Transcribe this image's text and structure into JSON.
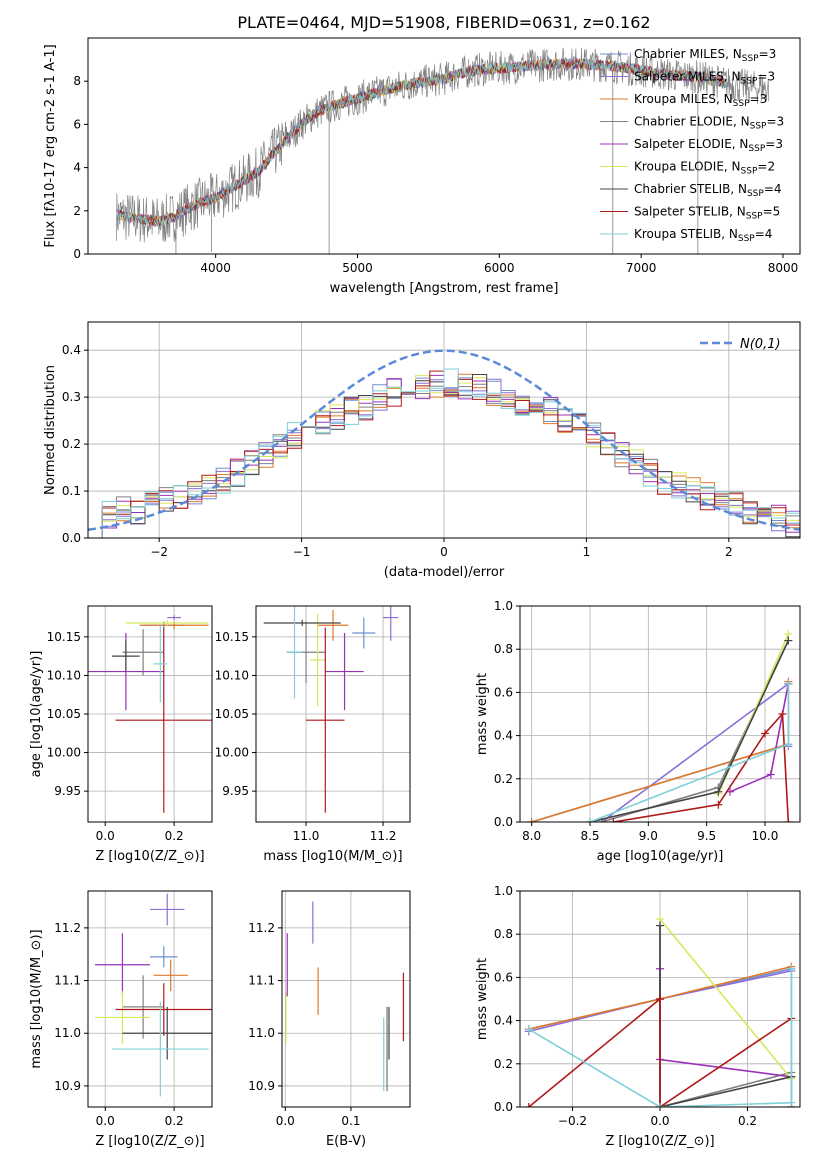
{
  "title": "PLATE=0464, MJD=51908, FIBERID=0631, z=0.162",
  "series_colors": [
    "#6f8fd8",
    "#8c6fd8",
    "#e07a2a",
    "#808080",
    "#9b30b8",
    "#d9e65a",
    "#444444",
    "#b01818",
    "#7fd0d8"
  ],
  "series_names": [
    "Chabrier MILES, N$_{SSP}$=3",
    "Salpeter MILES, N$_{SSP}$=3",
    "Kroupa MILES, N$_{SSP}$=3",
    "Chabrier ELODIE, N$_{SSP}$=3",
    "Salpeter ELODIE, N$_{SSP}$=3",
    "Kroupa ELODIE, N$_{SSP}$=2",
    "Chabrier STELIB, N$_{SSP}$=4",
    "Salpeter STELIB, N$_{SSP}$=5",
    "Kroupa STELIB, N$_{SSP}$=4"
  ],
  "chart_data": [
    {
      "id": "spectrum",
      "type": "line",
      "xlabel": "wavelength [Angstrom, rest frame]",
      "ylabel": "Flux [f$_\\lambda$10$^{-17}$ erg cm$^{-2}$ s$^{-1}$ A$^{-1}$]",
      "xlim": [
        3100,
        8120
      ],
      "ylim": [
        0,
        10
      ],
      "xticks": [
        "4000",
        "5000",
        "6000",
        "7000",
        "8000"
      ],
      "yticks": [
        "0",
        "2",
        "4",
        "6",
        "8"
      ],
      "grid": false,
      "legend": "upper-right",
      "legend_entries": [
        "Chabrier MILES, N",
        "Salpeter MILES, N",
        "Kroupa MILES, N",
        "Chabrier ELODIE, N",
        "Salpeter ELODIE, N",
        "Kroupa ELODIE, N",
        "Chabrier STELIB, N",
        "Salpeter STELIB, N",
        "Kroupa STELIB, N"
      ],
      "legend_sub": "SSP",
      "legend_suffix": [
        "=3",
        "=3",
        "=3",
        "=3",
        "=3",
        "=2",
        "=4",
        "=5",
        "=4"
      ],
      "continuum": {
        "x": [
          3300,
          3400,
          3500,
          3600,
          3700,
          3800,
          3900,
          4000,
          4100,
          4200,
          4300,
          4400,
          4500,
          4600,
          4700,
          4800,
          4900,
          5000,
          5200,
          5400,
          5600,
          5800,
          6000,
          6200,
          6400,
          6600,
          6800,
          7000,
          7200,
          7400,
          7600,
          7800
        ],
        "y": [
          1.8,
          1.7,
          1.6,
          1.5,
          1.7,
          2.1,
          2.4,
          2.6,
          3.0,
          3.4,
          3.8,
          4.6,
          5.3,
          6.0,
          6.5,
          6.8,
          7.0,
          7.2,
          7.6,
          7.9,
          8.1,
          8.5,
          8.6,
          8.7,
          8.8,
          8.8,
          8.7,
          8.5,
          8.3,
          8.2,
          7.9,
          7.7
        ]
      }
    },
    {
      "id": "residuals",
      "type": "bar",
      "xlabel": "(data-model)/error",
      "ylabel": "Normed distribution",
      "xlim": [
        -2.5,
        2.5
      ],
      "ylim": [
        0,
        0.46
      ],
      "xticks": [
        "−2",
        "−1",
        "0",
        "1",
        "2"
      ],
      "yticks": [
        "0.0",
        "0.1",
        "0.2",
        "0.3",
        "0.4"
      ],
      "grid": true,
      "legend": "upper-right",
      "legend_label": "N(0,1)",
      "bin_width": 0.1,
      "hist_base": [
        0.03,
        0.05,
        0.06,
        0.06,
        0.07,
        0.08,
        0.09,
        0.1,
        0.11,
        0.12,
        0.14,
        0.16,
        0.18,
        0.2,
        0.22,
        0.24,
        0.25,
        0.26,
        0.27,
        0.28,
        0.3,
        0.31,
        0.32,
        0.32,
        0.33,
        0.33,
        0.32,
        0.32,
        0.31,
        0.3,
        0.29,
        0.28,
        0.27,
        0.25,
        0.24,
        0.22,
        0.2,
        0.18,
        0.16,
        0.14,
        0.12,
        0.11,
        0.1,
        0.09,
        0.08,
        0.07,
        0.06,
        0.05,
        0.04,
        0.03
      ]
    },
    {
      "id": "age-vs-Z",
      "type": "scatter",
      "xlabel": "Z [log$_{10}$($Z/Z_\\odot$)]",
      "ylabel": "age  [log$_{10}$($age/yr$)]",
      "xlim": [
        -0.05,
        0.31
      ],
      "ylim": [
        9.91,
        10.19
      ],
      "xticks": [
        "0.0",
        "0.2"
      ],
      "yticks": [
        "9.95",
        "10.00",
        "10.05",
        "10.10",
        "10.15"
      ],
      "grid": true,
      "points": [
        {
          "x": 0.17,
          "y": 10.165,
          "xerr": 0.06,
          "yerr": 0.005
        },
        {
          "x": 0.2,
          "y": 10.175,
          "xerr": 0.02,
          "yerr": 0.003
        },
        {
          "x": 0.2,
          "y": 10.165,
          "xerr": 0.1,
          "yerr": 0.005
        },
        {
          "x": 0.11,
          "y": 10.13,
          "xerr": 0.06,
          "yerr": 0.03
        },
        {
          "x": 0.06,
          "y": 10.105,
          "xerr": 0.11,
          "yerr": 0.05
        },
        {
          "x": 0.18,
          "y": 10.168,
          "xerr": 0.12,
          "yerr": 0.004
        },
        {
          "x": 0.06,
          "y": 10.125,
          "xerr": 0.04,
          "yerr": 0.02
        },
        {
          "x": 0.17,
          "y": 10.042,
          "xerr": 0.14,
          "yerr": 0.12
        },
        {
          "x": 0.16,
          "y": 10.115,
          "xerr": 0.02,
          "yerr": 0.05
        }
      ]
    },
    {
      "id": "age-vs-mass",
      "type": "scatter",
      "xlabel": "mass [log$_{10}$($M/M_\\odot$)]",
      "ylabel": "",
      "xlim": [
        10.87,
        11.27
      ],
      "ylim": [
        9.91,
        10.19
      ],
      "xticks": [
        "11.0",
        "11.2"
      ],
      "yticks": [
        "9.95",
        "10.00",
        "10.05",
        "10.10",
        "10.15"
      ],
      "grid": true,
      "points": [
        {
          "x": 11.15,
          "y": 10.155,
          "xerr": 0.03,
          "yerr": 0.02
        },
        {
          "x": 11.22,
          "y": 10.175,
          "xerr": 0.02,
          "yerr": 0.03
        },
        {
          "x": 11.07,
          "y": 10.165,
          "xerr": 0.04,
          "yerr": 0.02
        },
        {
          "x": 11.0,
          "y": 10.13,
          "xerr": 0.05,
          "yerr": 0.04
        },
        {
          "x": 11.1,
          "y": 10.105,
          "xerr": 0.05,
          "yerr": 0.05
        },
        {
          "x": 11.03,
          "y": 10.12,
          "xerr": 0.02,
          "yerr": 0.06
        },
        {
          "x": 10.99,
          "y": 10.168,
          "xerr": 0.1,
          "yerr": 0.004
        },
        {
          "x": 11.05,
          "y": 10.042,
          "xerr": 0.05,
          "yerr": 0.12
        },
        {
          "x": 10.97,
          "y": 10.13,
          "xerr": 0.02,
          "yerr": 0.06
        }
      ]
    },
    {
      "id": "weight-vs-age",
      "type": "line",
      "xlabel": "age  [log$_{10}$($age/yr$)]",
      "ylabel": "mass weight",
      "xlim": [
        7.9,
        10.3
      ],
      "ylim": [
        0,
        1.0
      ],
      "xticks": [
        "8.0",
        "8.5",
        "9.0",
        "9.5",
        "10.0"
      ],
      "yticks": [
        "0.0",
        "0.2",
        "0.4",
        "0.6",
        "0.8",
        "1.0"
      ],
      "grid": true,
      "series": [
        {
          "x": [
            8.0,
            10.2,
            10.2
          ],
          "y": [
            0.0,
            0.36,
            0.64
          ]
        },
        {
          "x": [
            8.6,
            10.2,
            10.2
          ],
          "y": [
            0.0,
            0.64,
            0.35
          ]
        },
        {
          "x": [
            8.0,
            10.2,
            10.2
          ],
          "y": [
            0.0,
            0.36,
            0.65
          ]
        },
        {
          "x": [
            8.6,
            9.6,
            10.2
          ],
          "y": [
            0.0,
            0.16,
            0.84
          ]
        },
        {
          "x": [
            9.7,
            10.05,
            10.2
          ],
          "y": [
            0.14,
            0.22,
            0.64
          ]
        },
        {
          "x": [
            9.6,
            10.2
          ],
          "y": [
            0.13,
            0.87
          ]
        },
        {
          "x": [
            8.5,
            9.6,
            10.2
          ],
          "y": [
            0.0,
            0.14,
            0.84
          ]
        },
        {
          "x": [
            8.7,
            9.6,
            10.0,
            10.15,
            10.2
          ],
          "y": [
            0.0,
            0.08,
            0.41,
            0.5,
            0.0
          ]
        },
        {
          "x": [
            8.5,
            10.2,
            10.2
          ],
          "y": [
            0.0,
            0.36,
            0.64
          ]
        }
      ]
    },
    {
      "id": "mass-vs-Z",
      "type": "scatter",
      "xlabel": "Z [log$_{10}$($Z/Z_\\odot$)]",
      "ylabel": "mass [log$_{10}$($M/M_\\odot$)]",
      "xlim": [
        -0.05,
        0.31
      ],
      "ylim": [
        10.86,
        11.27
      ],
      "xticks": [
        "0.0",
        "0.2"
      ],
      "yticks": [
        "10.9",
        "11.0",
        "11.1",
        "11.2"
      ],
      "grid": true,
      "points": [
        {
          "x": 0.17,
          "y": 11.145,
          "xerr": 0.04,
          "yerr": 0.02
        },
        {
          "x": 0.18,
          "y": 11.235,
          "xerr": 0.05,
          "yerr": 0.03
        },
        {
          "x": 0.19,
          "y": 11.11,
          "xerr": 0.05,
          "yerr": 0.03
        },
        {
          "x": 0.11,
          "y": 11.05,
          "xerr": 0.06,
          "yerr": 0.06
        },
        {
          "x": 0.05,
          "y": 11.13,
          "xerr": 0.08,
          "yerr": 0.06
        },
        {
          "x": 0.05,
          "y": 11.03,
          "xerr": 0.08,
          "yerr": 0.05
        },
        {
          "x": 0.18,
          "y": 11.0,
          "xerr": 0.13,
          "yerr": 0.05
        },
        {
          "x": 0.17,
          "y": 11.045,
          "xerr": 0.14,
          "yerr": 0.05
        },
        {
          "x": 0.16,
          "y": 10.97,
          "xerr": 0.14,
          "yerr": 0.09
        }
      ]
    },
    {
      "id": "mass-vs-EBV",
      "type": "scatter",
      "xlabel": "E(B-V)",
      "ylabel": "",
      "xlim": [
        -0.005,
        0.19
      ],
      "ylim": [
        10.86,
        11.27
      ],
      "xticks": [
        "0.0",
        "0.1"
      ],
      "yticks": [
        "10.9",
        "11.0",
        "11.1",
        "11.2"
      ],
      "grid": true,
      "points": [
        {
          "x": 0.155,
          "y": 10.97,
          "xerr": 0,
          "yerr": 0.08
        },
        {
          "x": 0.042,
          "y": 11.21,
          "xerr": 0,
          "yerr": 0.04
        },
        {
          "x": 0.05,
          "y": 11.08,
          "xerr": 0,
          "yerr": 0.045
        },
        {
          "x": 0.155,
          "y": 10.97,
          "xerr": 0,
          "yerr": 0.08
        },
        {
          "x": 0.003,
          "y": 11.13,
          "xerr": 0,
          "yerr": 0.06
        },
        {
          "x": 0.001,
          "y": 11.03,
          "xerr": 0,
          "yerr": 0.05
        },
        {
          "x": 0.158,
          "y": 11.0,
          "xerr": 0,
          "yerr": 0.05
        },
        {
          "x": 0.18,
          "y": 11.05,
          "xerr": 0,
          "yerr": 0.065
        },
        {
          "x": 0.15,
          "y": 10.96,
          "xerr": 0,
          "yerr": 0.07
        }
      ]
    },
    {
      "id": "weight-vs-Z",
      "type": "line",
      "xlabel": "Z [log$_{10}$($Z/Z_\\odot$)]",
      "ylabel": "mass weight",
      "xlim": [
        -0.32,
        0.32
      ],
      "ylim": [
        0,
        1.0
      ],
      "xticks": [
        "−0.2",
        "0.0",
        "0.2"
      ],
      "yticks": [
        "0.0",
        "0.2",
        "0.4",
        "0.6",
        "0.8",
        "1.0"
      ],
      "grid": true,
      "series": [
        {
          "x": [
            -0.3,
            0.0,
            0.3,
            0.3
          ],
          "y": [
            0.36,
            0.5,
            0.64,
            0.0
          ]
        },
        {
          "x": [
            -0.3,
            0.0,
            0.3,
            0.3
          ],
          "y": [
            0.35,
            0.5,
            0.63,
            0.0
          ]
        },
        {
          "x": [
            -0.3,
            0.0,
            0.3
          ],
          "y": [
            0.36,
            0.5,
            0.65
          ]
        },
        {
          "x": [
            0.0,
            0.0,
            0.3,
            0.3
          ],
          "y": [
            0.84,
            0.0,
            0.16,
            0.0
          ]
        },
        {
          "x": [
            0.0,
            0.0,
            0.3
          ],
          "y": [
            0.64,
            0.22,
            0.14
          ]
        },
        {
          "x": [
            0.0,
            0.3
          ],
          "y": [
            0.87,
            0.13
          ]
        },
        {
          "x": [
            0.0,
            0.0,
            0.3
          ],
          "y": [
            0.84,
            0.0,
            0.14
          ]
        },
        {
          "x": [
            -0.3,
            0.0,
            0.0,
            0.3
          ],
          "y": [
            0.0,
            0.5,
            0.0,
            0.41
          ]
        },
        {
          "x": [
            -0.3,
            0.0,
            0.3,
            0.3
          ],
          "y": [
            0.36,
            0.0,
            0.02,
            0.64
          ]
        }
      ]
    }
  ]
}
